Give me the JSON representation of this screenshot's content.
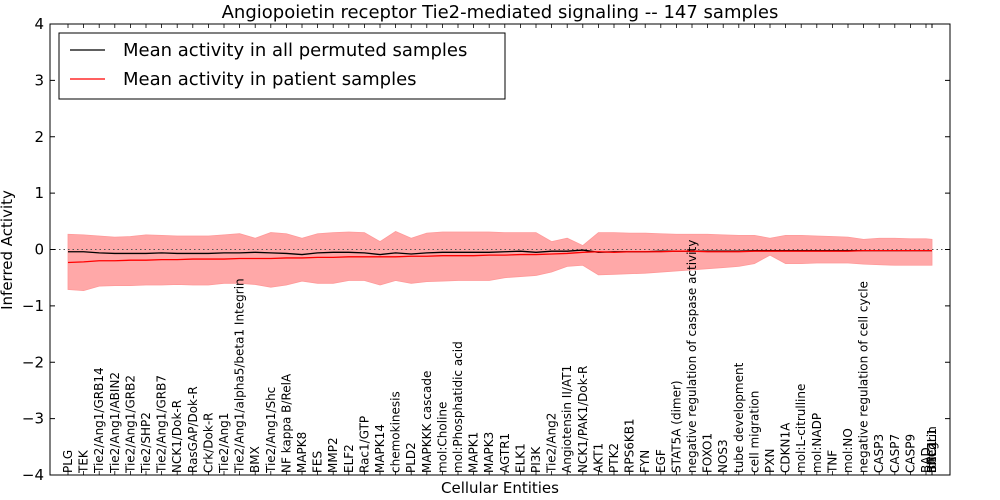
{
  "chart_data": {
    "type": "line",
    "title": "Angiopoietin receptor Tie2-mediated signaling -- 147 samples",
    "xlabel": "Cellular Entities",
    "ylabel": "Inferred Activity",
    "ylim": [
      -4,
      4
    ],
    "yticks": [
      4,
      3,
      2,
      1,
      0,
      -1,
      -2,
      -3,
      -4
    ],
    "ytick_labels": [
      "4",
      "3",
      "2",
      "1",
      "0",
      "−1",
      "−2",
      "−3",
      "−4"
    ],
    "reference_line": 0,
    "legend_position": "top-left",
    "categories": [
      "PLG",
      "TEK",
      "Tie2/Ang1/GRB14",
      "Tie2/Ang1/ABIN2",
      "Tie2/Ang1/GRB2",
      "Tie2/SHP2",
      "Tie2/Ang1/GRB7",
      "NCK1/Dok-R",
      "RasGAP/Dok-R",
      "Crk/Dok-R",
      "Tie2/Ang1",
      "Tie2/Ang1/alpha5/beta1 Integrin",
      "BMX",
      "Tie2/Ang1/Shc",
      "NF kappa B/RelA",
      "MAPK8",
      "FES",
      "MMP2",
      "ELF2",
      "Rac1/GTP",
      "MAPK14",
      "chemokinesis",
      "PLD2",
      "MAPKKK cascade",
      "mol:Choline",
      "mol:Phosphatidic acid",
      "MAPK1",
      "MAPK3",
      "AGTR1",
      "ELK1",
      "PI3K",
      "Tie2/Ang2",
      "Angiotensin II/AT1",
      "NCK1/PAK1/Dok-R",
      "AKT1",
      "PTK2",
      "RPS6KB1",
      "FYN",
      "EGF",
      "STAT5A (dimer)",
      "negative regulation of caspase activity",
      "FOXO1",
      "NOS3",
      "tube development",
      "cell migration",
      "PXN",
      "CDKN1A",
      "mol:L-citrulline",
      "mol:NADP",
      "TNF",
      "mol:NO",
      "negative regulation of cell cycle",
      "CASP3",
      "CASP7",
      "CASP9",
      "BAD",
      "BCL2L1",
      "Integrin",
      "SHC1",
      "RAC1"
    ],
    "series": [
      {
        "name": "Mean activity in all permuted samples",
        "color": "#000000",
        "values": [
          -0.04,
          -0.04,
          -0.06,
          -0.07,
          -0.07,
          -0.07,
          -0.06,
          -0.07,
          -0.07,
          -0.07,
          -0.06,
          -0.06,
          -0.05,
          -0.06,
          -0.07,
          -0.09,
          -0.06,
          -0.05,
          -0.05,
          -0.06,
          -0.09,
          -0.06,
          -0.08,
          -0.06,
          -0.05,
          -0.05,
          -0.05,
          -0.05,
          -0.04,
          -0.03,
          -0.05,
          -0.03,
          -0.03,
          -0.01,
          -0.05,
          -0.04,
          -0.04,
          -0.04,
          -0.03,
          -0.03,
          -0.03,
          -0.03,
          -0.03,
          -0.03,
          -0.02,
          -0.02,
          -0.02,
          -0.02,
          -0.02,
          -0.02,
          -0.02,
          -0.02,
          -0.02,
          -0.02,
          -0.02,
          -0.02,
          -0.02,
          -0.02,
          -0.02,
          -0.02
        ]
      },
      {
        "name": "Mean activity in patient samples",
        "color": "#ff0000",
        "band_color": "#ff9999",
        "values": [
          -0.23,
          -0.22,
          -0.2,
          -0.2,
          -0.19,
          -0.19,
          -0.18,
          -0.18,
          -0.17,
          -0.17,
          -0.17,
          -0.16,
          -0.16,
          -0.16,
          -0.15,
          -0.15,
          -0.14,
          -0.14,
          -0.13,
          -0.13,
          -0.13,
          -0.13,
          -0.12,
          -0.12,
          -0.11,
          -0.11,
          -0.11,
          -0.1,
          -0.1,
          -0.09,
          -0.09,
          -0.08,
          -0.07,
          -0.05,
          -0.04,
          -0.05,
          -0.04,
          -0.04,
          -0.04,
          -0.03,
          -0.03,
          -0.04,
          -0.04,
          -0.04,
          -0.03,
          -0.03,
          -0.03,
          -0.03,
          -0.03,
          -0.03,
          -0.03,
          -0.02,
          -0.02,
          -0.02,
          -0.02,
          -0.02,
          -0.02,
          -0.02,
          -0.02,
          -0.02
        ],
        "upper": [
          0.27,
          0.26,
          0.24,
          0.22,
          0.23,
          0.26,
          0.25,
          0.24,
          0.24,
          0.24,
          0.26,
          0.28,
          0.2,
          0.3,
          0.28,
          0.2,
          0.28,
          0.3,
          0.31,
          0.3,
          0.14,
          0.32,
          0.2,
          0.29,
          0.31,
          0.31,
          0.31,
          0.31,
          0.3,
          0.3,
          0.3,
          0.14,
          0.2,
          0.07,
          0.3,
          0.3,
          0.29,
          0.29,
          0.28,
          0.27,
          0.27,
          0.27,
          0.26,
          0.25,
          0.25,
          0.2,
          0.25,
          0.25,
          0.24,
          0.23,
          0.22,
          0.18,
          0.2,
          0.2,
          0.19,
          0.19,
          0.18,
          0.18,
          0.18,
          0.18
        ],
        "lower": [
          -0.71,
          -0.73,
          -0.65,
          -0.64,
          -0.64,
          -0.63,
          -0.63,
          -0.62,
          -0.63,
          -0.63,
          -0.6,
          -0.6,
          -0.62,
          -0.67,
          -0.63,
          -0.56,
          -0.6,
          -0.6,
          -0.55,
          -0.55,
          -0.63,
          -0.55,
          -0.6,
          -0.57,
          -0.56,
          -0.55,
          -0.55,
          -0.55,
          -0.5,
          -0.48,
          -0.46,
          -0.4,
          -0.3,
          -0.28,
          -0.45,
          -0.44,
          -0.43,
          -0.42,
          -0.4,
          -0.38,
          -0.36,
          -0.34,
          -0.32,
          -0.3,
          -0.25,
          -0.1,
          -0.25,
          -0.25,
          -0.24,
          -0.24,
          -0.24,
          -0.26,
          -0.27,
          -0.28,
          -0.28,
          -0.28,
          -0.28,
          -0.28,
          -0.28,
          -0.28
        ]
      }
    ]
  }
}
